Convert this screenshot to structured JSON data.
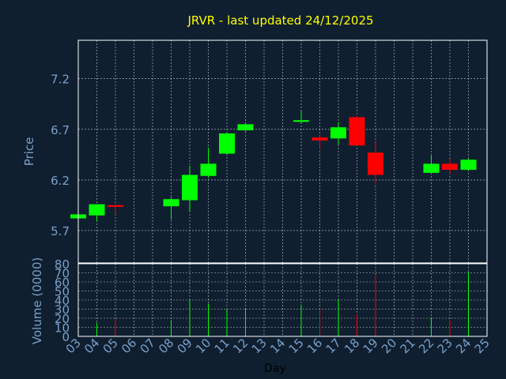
{
  "chart_data": [
    {
      "type": "candlestick",
      "title": "JRVR - last updated 24/12/2025",
      "ylabel": "Price",
      "ylim": [
        5.38,
        7.58
      ],
      "yticks": [
        "5.7",
        "6.2",
        "6.7",
        "7.2"
      ],
      "grid": true,
      "colors": {
        "up": "#00ff00",
        "down": "#ff0000",
        "title": "#ffff00",
        "axis_text": "#7aa0c8",
        "background": "#0f1f30",
        "grid": "#ffffff"
      },
      "candles": [
        {
          "day": 3,
          "open": 5.82,
          "high": 5.86,
          "low": 5.8,
          "close": 5.86
        },
        {
          "day": 4,
          "open": 5.85,
          "high": 5.96,
          "low": 5.79,
          "close": 5.96
        },
        {
          "day": 5,
          "open": 5.95,
          "high": 5.96,
          "low": 5.86,
          "close": 5.94
        },
        {
          "day": 8,
          "open": 5.94,
          "high": 6.03,
          "low": 5.81,
          "close": 6.01
        },
        {
          "day": 9,
          "open": 6.0,
          "high": 6.34,
          "low": 5.89,
          "close": 6.25
        },
        {
          "day": 10,
          "open": 6.24,
          "high": 6.52,
          "low": 6.22,
          "close": 6.36
        },
        {
          "day": 11,
          "open": 6.46,
          "high": 6.66,
          "low": 6.45,
          "close": 6.66
        },
        {
          "day": 12,
          "open": 6.69,
          "high": 6.76,
          "low": 6.68,
          "close": 6.75
        },
        {
          "day": 15,
          "open": 6.78,
          "high": 6.88,
          "low": 6.76,
          "close": 6.79
        },
        {
          "day": 16,
          "open": 6.62,
          "high": 6.64,
          "low": 6.5,
          "close": 6.59
        },
        {
          "day": 17,
          "open": 6.61,
          "high": 6.77,
          "low": 6.55,
          "close": 6.72
        },
        {
          "day": 18,
          "open": 6.82,
          "high": 6.83,
          "low": 6.54,
          "close": 6.54
        },
        {
          "day": 19,
          "open": 6.47,
          "high": 6.57,
          "low": 6.15,
          "close": 6.25
        },
        {
          "day": 22,
          "open": 6.27,
          "high": 6.44,
          "low": 6.27,
          "close": 6.36
        },
        {
          "day": 23,
          "open": 6.36,
          "high": 6.41,
          "low": 6.26,
          "close": 6.3
        },
        {
          "day": 24,
          "open": 6.3,
          "high": 6.41,
          "low": 6.29,
          "close": 6.4
        }
      ]
    },
    {
      "type": "bar",
      "ylabel": "Volume (0000)",
      "xlabel": "Day",
      "ylim": [
        0,
        80
      ],
      "yticks": [
        "0",
        "10",
        "20",
        "30",
        "40",
        "50",
        "60",
        "70",
        "80"
      ],
      "xticks": [
        "03",
        "04",
        "05",
        "06",
        "07",
        "08",
        "09",
        "10",
        "11",
        "12",
        "13",
        "14",
        "15",
        "16",
        "17",
        "18",
        "19",
        "20",
        "21",
        "22",
        "23",
        "24",
        "25"
      ],
      "grid": true,
      "bars": [
        {
          "day": 3,
          "value": 2,
          "direction": "up"
        },
        {
          "day": 4,
          "value": 15,
          "direction": "up"
        },
        {
          "day": 5,
          "value": 19,
          "direction": "down"
        },
        {
          "day": 8,
          "value": 18,
          "direction": "up"
        },
        {
          "day": 9,
          "value": 40,
          "direction": "up"
        },
        {
          "day": 10,
          "value": 36,
          "direction": "up"
        },
        {
          "day": 11,
          "value": 30,
          "direction": "up"
        },
        {
          "day": 12,
          "value": 31,
          "direction": "up"
        },
        {
          "day": 15,
          "value": 35,
          "direction": "up"
        },
        {
          "day": 16,
          "value": 30,
          "direction": "down"
        },
        {
          "day": 17,
          "value": 41,
          "direction": "up"
        },
        {
          "day": 18,
          "value": 24,
          "direction": "down"
        },
        {
          "day": 19,
          "value": 67,
          "direction": "down"
        },
        {
          "day": 22,
          "value": 21,
          "direction": "up"
        },
        {
          "day": 23,
          "value": 18,
          "direction": "down"
        },
        {
          "day": 24,
          "value": 71,
          "direction": "up"
        }
      ]
    }
  ]
}
